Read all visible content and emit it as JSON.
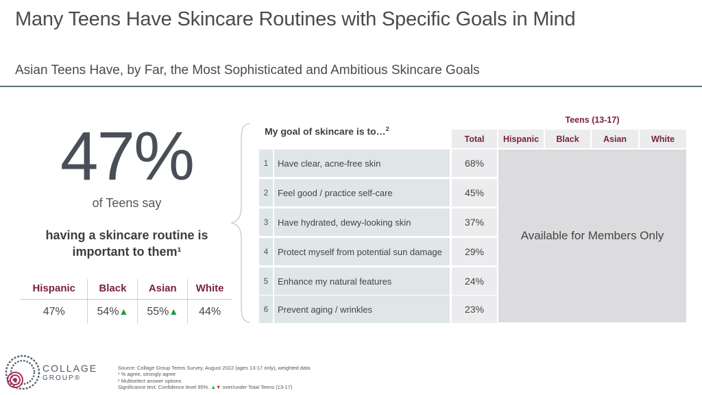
{
  "title": "Many Teens Have Skincare Routines with Specific Goals in Mind",
  "subtitle": "Asian Teens Have, by Far, the Most Sophisticated and Ambitious Skincare Goals",
  "stat": {
    "value": "47%",
    "caption": "of Teens say",
    "statement_line1": "having a skincare routine is",
    "statement_line2": "important to them¹"
  },
  "segments": {
    "headers": [
      "Hispanic",
      "Black",
      "Asian",
      "White"
    ],
    "values": [
      "47%",
      "54%",
      "55%",
      "44%"
    ],
    "up_marker": "▲"
  },
  "goals": {
    "question": "My goal of skincare is to…",
    "question_note": "2",
    "teens_header": "Teens (13-17)",
    "columns": [
      "Total",
      "Hispanic",
      "Black",
      "Asian",
      "White"
    ],
    "rows": [
      {
        "num": "1",
        "label": "Have clear, acne-free skin",
        "total": "68%"
      },
      {
        "num": "2",
        "label": "Feel good / practice self-care",
        "total": "45%"
      },
      {
        "num": "3",
        "label": "Have hydrated, dewy-looking skin",
        "total": "37%"
      },
      {
        "num": "4",
        "label": "Protect myself from potential sun damage",
        "total": "29%"
      },
      {
        "num": "5",
        "label": "Enhance my natural features",
        "total": "24%"
      },
      {
        "num": "6",
        "label": "Prevent aging / wrinkles",
        "total": "23%"
      }
    ],
    "members_text": "Available for Members Only"
  },
  "brand": {
    "line1": "COLLAGE",
    "line2": "GROUP®"
  },
  "footnotes": {
    "source": "Source: Collage Group Teens Survey, August 2022 (ages 13-17 only), weighted data",
    "note1": "¹ % agree, strongly agree",
    "note2": "² Multiselect answer options",
    "sig_prefix": "Significance test: Confidence level 95%.",
    "sig_up": "▲",
    "sig_down": "▼",
    "sig_suffix": "over/under Total Teens (13-17)"
  },
  "colors": {
    "accent": "#7a1f3d",
    "up": "#1e9a46",
    "down": "#c62828",
    "rule": "#5b7076"
  }
}
